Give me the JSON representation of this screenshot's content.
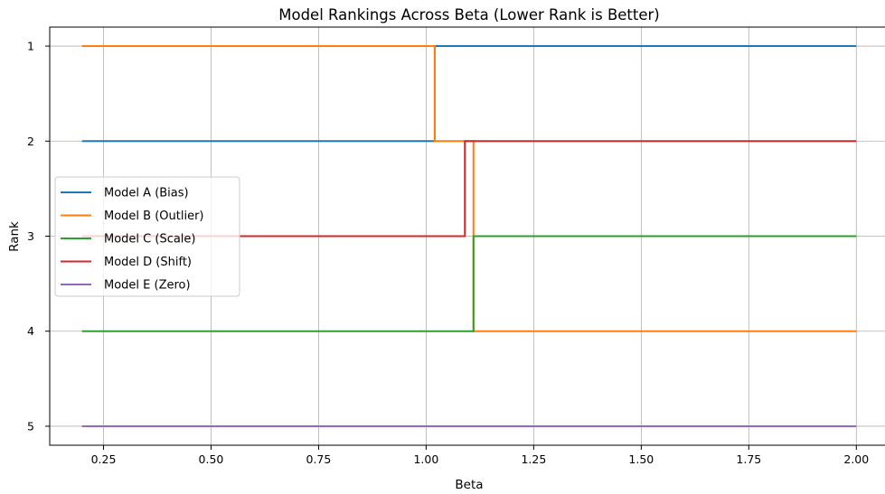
{
  "chart_data": {
    "type": "line",
    "step": "post",
    "title": "Model Rankings Across Beta (Lower Rank is Better)",
    "xlabel": "Beta",
    "ylabel": "Rank",
    "xlim": [
      0.125,
      2.075
    ],
    "ylim": [
      5.2,
      0.8
    ],
    "y_inverted": true,
    "grid": true,
    "legend_position": "center-left",
    "xticks": [
      "0.25",
      "0.50",
      "0.75",
      "1.00",
      "1.25",
      "1.50",
      "1.75",
      "2.00"
    ],
    "yticks": [
      "1",
      "2",
      "3",
      "4",
      "5"
    ],
    "series": [
      {
        "name": "Model A (Bias)",
        "color": "#1f77b4",
        "x": [
          0.2,
          1.02,
          2.0
        ],
        "y": [
          2,
          1,
          1
        ]
      },
      {
        "name": "Model B (Outlier)",
        "color": "#ff7f0e",
        "x": [
          0.2,
          1.02,
          1.11,
          2.0
        ],
        "y": [
          1,
          2,
          4,
          4
        ]
      },
      {
        "name": "Model C (Scale)",
        "color": "#2ca02c",
        "x": [
          0.2,
          1.11,
          2.0
        ],
        "y": [
          4,
          3,
          3
        ]
      },
      {
        "name": "Model D (Shift)",
        "color": "#d62728",
        "x": [
          0.2,
          1.09,
          2.0
        ],
        "y": [
          3,
          2,
          2
        ]
      },
      {
        "name": "Model E (Zero)",
        "color": "#9467bd",
        "x": [
          0.2,
          2.0
        ],
        "y": [
          5,
          5
        ]
      }
    ]
  }
}
